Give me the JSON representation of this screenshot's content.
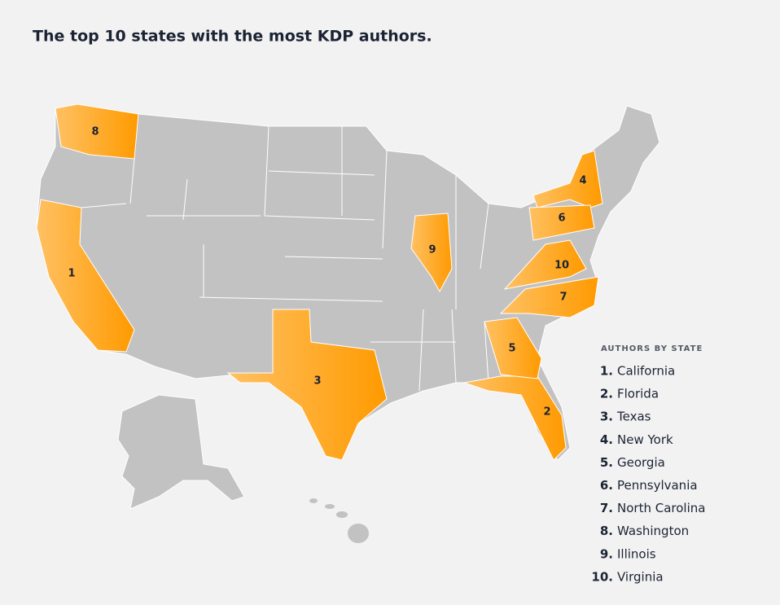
{
  "title": "The top 10 states with the most KDP authors.",
  "map": {
    "labels": [
      "1",
      "2",
      "3",
      "4",
      "5",
      "6",
      "7",
      "8",
      "9",
      "10"
    ]
  },
  "legend": {
    "heading": "AUTHORS BY STATE",
    "items": [
      {
        "number": "1.",
        "state": "California"
      },
      {
        "number": "2.",
        "state": "Florida"
      },
      {
        "number": "3.",
        "state": "Texas"
      },
      {
        "number": "4.",
        "state": "New York"
      },
      {
        "number": "5.",
        "state": "Georgia"
      },
      {
        "number": "6.",
        "state": "Pennsylvania"
      },
      {
        "number": "7.",
        "state": "North Carolina"
      },
      {
        "number": "8.",
        "state": "Washington"
      },
      {
        "number": "9.",
        "state": "Illinois"
      },
      {
        "number": "10.",
        "state": "Virginia"
      }
    ]
  }
}
